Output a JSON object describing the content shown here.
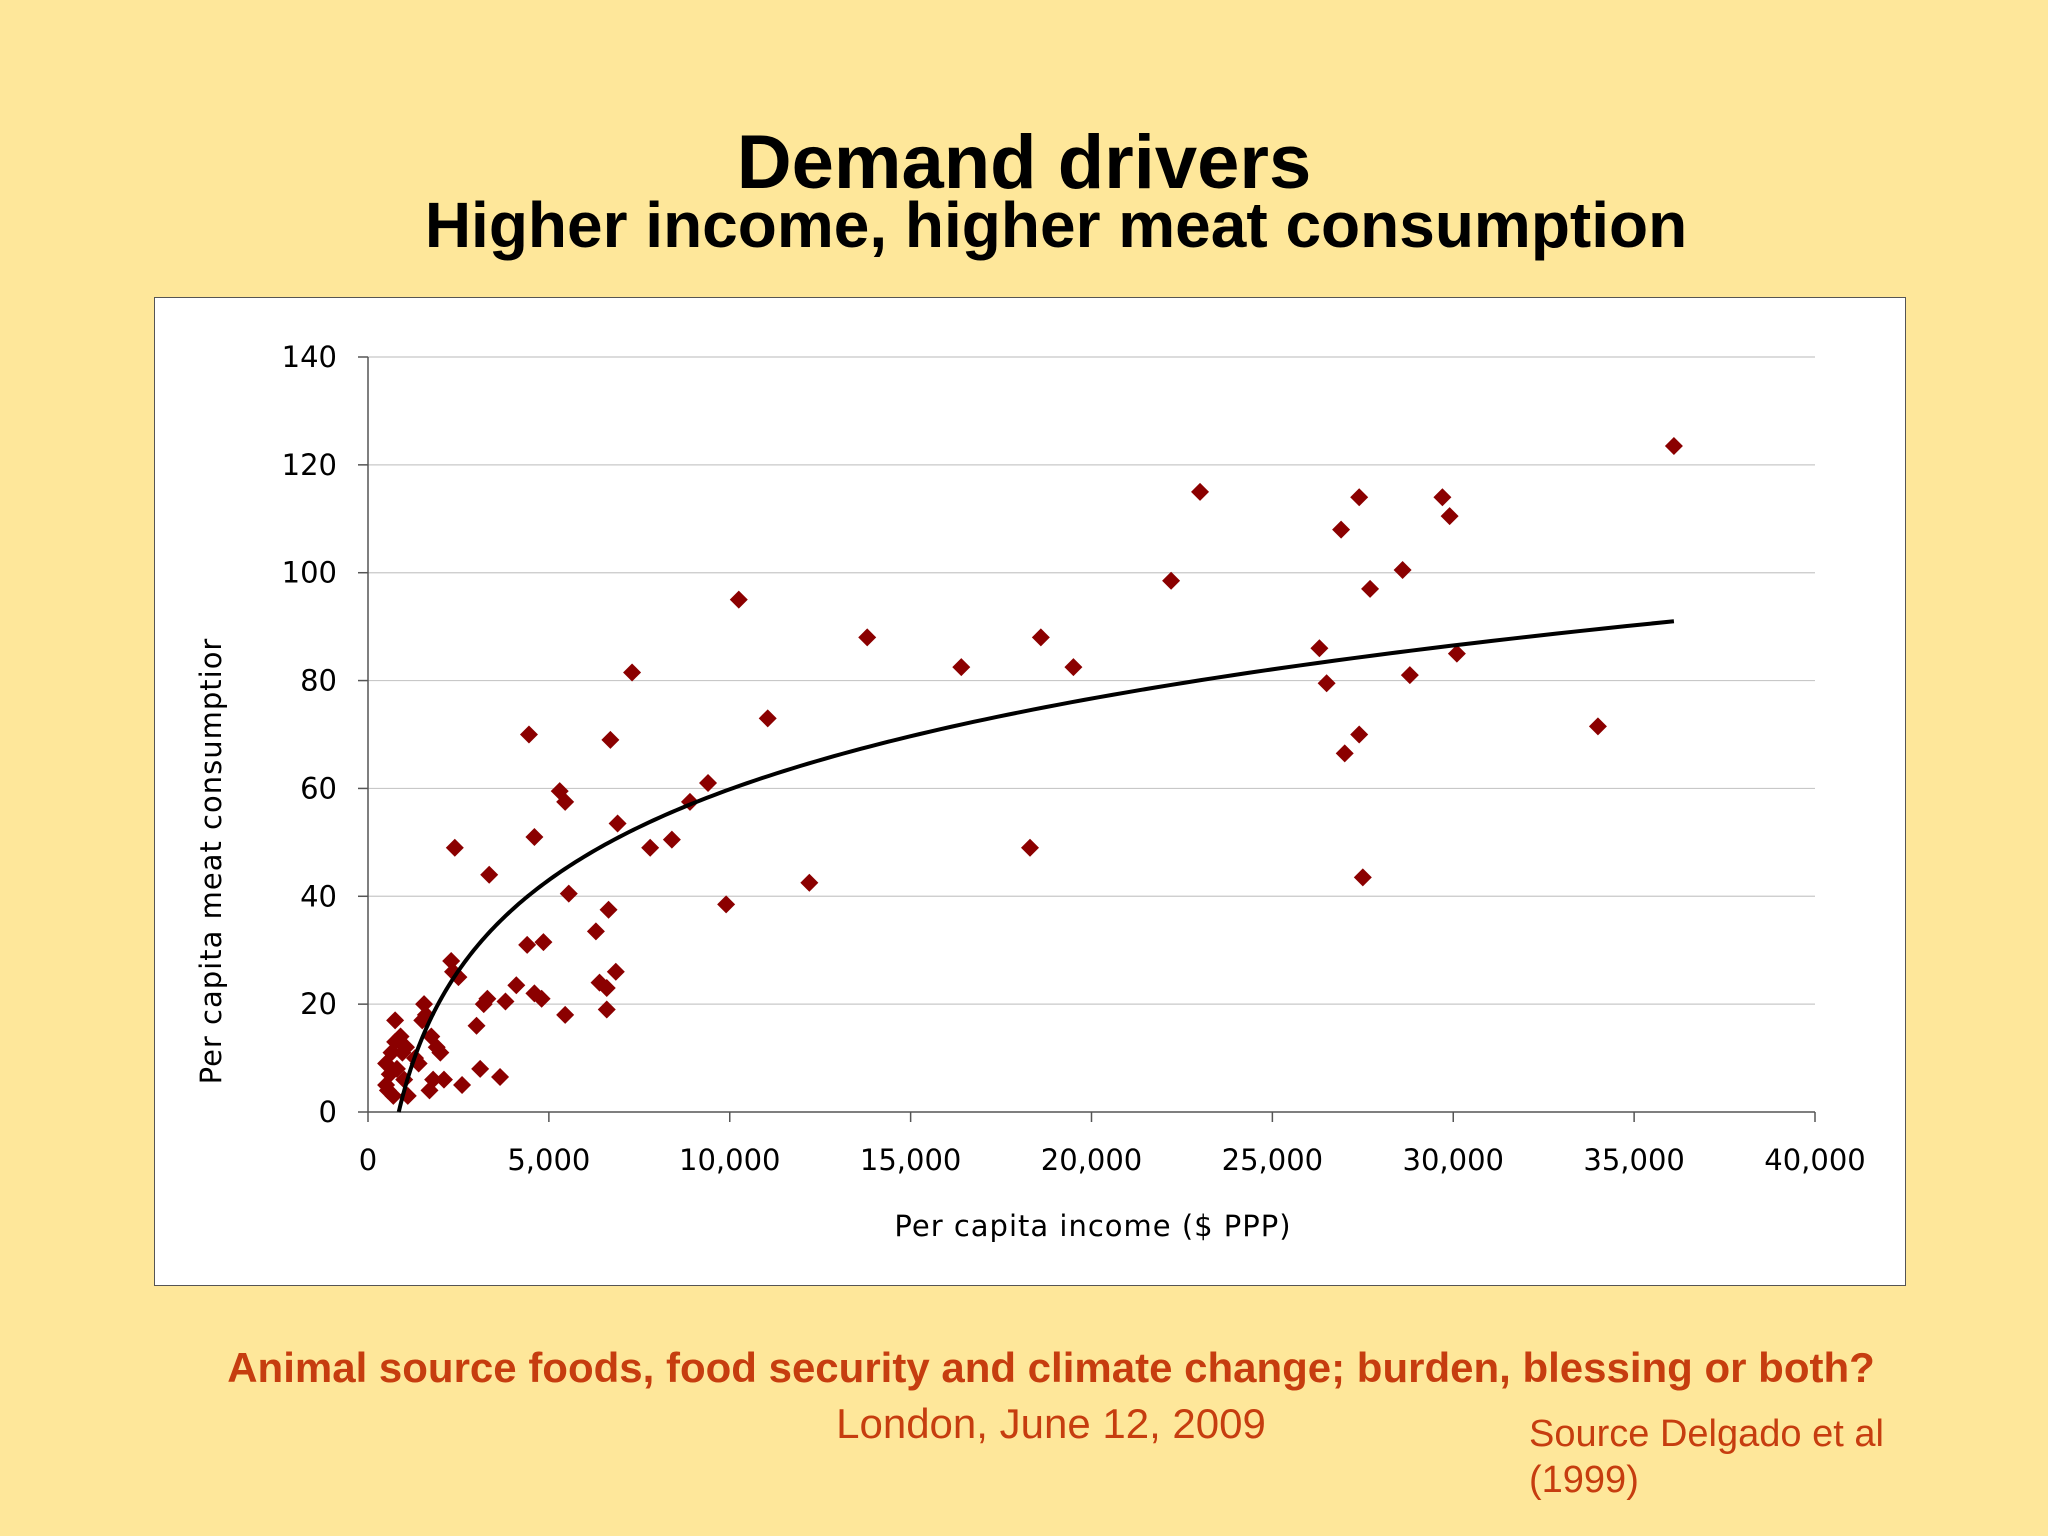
{
  "slide": {
    "title": "Demand drivers",
    "subtitle": "Higher income, higher meat consumption",
    "footer_title": "Animal source foods, food security and climate change; burden, blessing or both?",
    "footer_date": "London, June 12, 2009",
    "source_line1": "Source Delgado et al",
    "source_line2": "(1999)"
  },
  "colors": {
    "background": "#FEE79A",
    "marker": "#8B0000",
    "trend": "#000000",
    "footer_text": "#C63D0F"
  },
  "chart_data": {
    "type": "scatter",
    "xlabel": "Per capita income ($ PPP)",
    "ylabel": "Per capita meat consumptior",
    "xlim": [
      0,
      40000
    ],
    "ylim": [
      0,
      140
    ],
    "x_ticks": [
      0,
      5000,
      10000,
      15000,
      20000,
      25000,
      30000,
      35000,
      40000
    ],
    "x_tick_labels": [
      "0",
      "5,000",
      "10,000",
      "15,000",
      "20,000",
      "25,000",
      "30,000",
      "35,000",
      "40,000"
    ],
    "y_ticks": [
      0,
      20,
      40,
      60,
      80,
      100,
      120,
      140
    ],
    "y_tick_labels": [
      "0",
      "20",
      "40",
      "60",
      "80",
      "100",
      "120",
      "140"
    ],
    "grid": "horizontal",
    "legend": "none",
    "marker": "diamond",
    "points": [
      [
        500,
        9
      ],
      [
        500,
        5
      ],
      [
        550,
        4
      ],
      [
        600,
        7
      ],
      [
        650,
        11
      ],
      [
        700,
        3
      ],
      [
        750,
        13
      ],
      [
        750,
        17
      ],
      [
        800,
        8
      ],
      [
        900,
        14
      ],
      [
        950,
        11
      ],
      [
        1000,
        6
      ],
      [
        1050,
        12
      ],
      [
        1100,
        3
      ],
      [
        1300,
        10
      ],
      [
        1400,
        9
      ],
      [
        1500,
        17
      ],
      [
        1550,
        20
      ],
      [
        1600,
        18
      ],
      [
        1700,
        4
      ],
      [
        1750,
        14
      ],
      [
        1800,
        6
      ],
      [
        1900,
        12
      ],
      [
        2000,
        11
      ],
      [
        2100,
        6
      ],
      [
        2300,
        28
      ],
      [
        2350,
        26
      ],
      [
        2400,
        49
      ],
      [
        2500,
        25
      ],
      [
        2600,
        5
      ],
      [
        3000,
        16
      ],
      [
        3100,
        8
      ],
      [
        3200,
        20
      ],
      [
        3300,
        21
      ],
      [
        3350,
        44
      ],
      [
        3650,
        6.5
      ],
      [
        3800,
        20.5
      ],
      [
        4100,
        23.5
      ],
      [
        4400,
        31
      ],
      [
        4450,
        70
      ],
      [
        4600,
        51
      ],
      [
        4600,
        22
      ],
      [
        4800,
        21
      ],
      [
        4850,
        31.5
      ],
      [
        5300,
        59.5
      ],
      [
        5450,
        18
      ],
      [
        5450,
        57.5
      ],
      [
        5550,
        40.5
      ],
      [
        6300,
        33.5
      ],
      [
        6400,
        24
      ],
      [
        6600,
        19
      ],
      [
        6600,
        23
      ],
      [
        6650,
        37.5
      ],
      [
        6700,
        69
      ],
      [
        6850,
        26
      ],
      [
        6900,
        53.5
      ],
      [
        7300,
        81.5
      ],
      [
        7800,
        49
      ],
      [
        8400,
        50.5
      ],
      [
        8900,
        57.5
      ],
      [
        9400,
        61
      ],
      [
        9900,
        38.5
      ],
      [
        10250,
        95
      ],
      [
        11050,
        73
      ],
      [
        12200,
        42.5
      ],
      [
        13800,
        88
      ],
      [
        16400,
        82.5
      ],
      [
        18300,
        49
      ],
      [
        18600,
        88
      ],
      [
        19500,
        82.5
      ],
      [
        22200,
        98.5
      ],
      [
        23000,
        115
      ],
      [
        26300,
        86
      ],
      [
        26500,
        79.5
      ],
      [
        26900,
        108
      ],
      [
        27000,
        66.5
      ],
      [
        27400,
        114
      ],
      [
        27400,
        70
      ],
      [
        27500,
        43.5
      ],
      [
        27700,
        97
      ],
      [
        28600,
        100.5
      ],
      [
        28800,
        81
      ],
      [
        29700,
        114
      ],
      [
        29900,
        110.5
      ],
      [
        30100,
        85
      ],
      [
        34000,
        71.5
      ],
      [
        36100,
        123.5
      ]
    ],
    "trend_line": {
      "type": "logarithmic",
      "x_start": 850,
      "x_end": 36100,
      "y_at_x_start": 0,
      "y_at_x_end": 91
    }
  }
}
